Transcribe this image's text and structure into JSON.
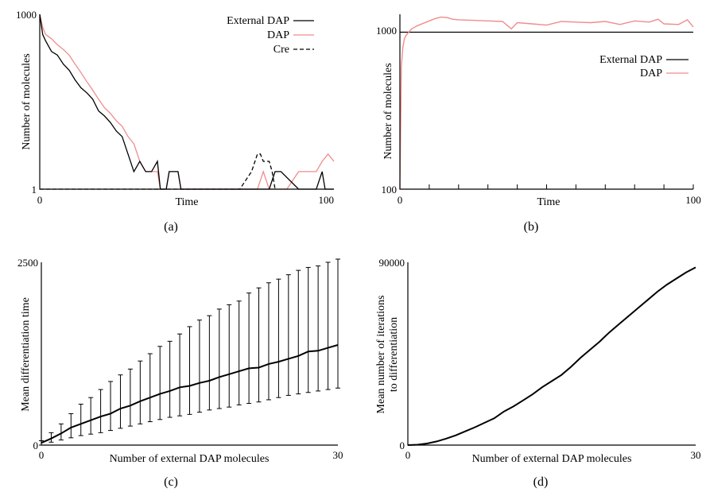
{
  "colors": {
    "external_dap": "#000000",
    "dap": "#f08c8c",
    "cre": "#000000",
    "axis": "#000000"
  },
  "chart_data": [
    {
      "panel": "a",
      "type": "line",
      "caption": "(a)",
      "xlabel": "Time",
      "ylabel": "Number of molecules",
      "yscale": "log",
      "xlim": [
        0,
        100
      ],
      "ylim": [
        1,
        1000
      ],
      "x_ticks": [
        "0",
        "100"
      ],
      "y_ticks": [
        "1",
        "1000"
      ],
      "legend_position": "top-right",
      "series": [
        {
          "name": "External DAP",
          "key": "ext",
          "color": "#000000",
          "style": "solid",
          "x": [
            0,
            1,
            2,
            4,
            6,
            8,
            10,
            12,
            14,
            16,
            18,
            20,
            22,
            24,
            26,
            28,
            30,
            32,
            34,
            36,
            38,
            40,
            41,
            42,
            43,
            44,
            47,
            48,
            61,
            72,
            74,
            76,
            78,
            80,
            82,
            88,
            90,
            92,
            94,
            96,
            97,
            98,
            100
          ],
          "y": [
            1000,
            450,
            350,
            230,
            200,
            140,
            110,
            75,
            55,
            45,
            35,
            22,
            18,
            14,
            10,
            8,
            4,
            2,
            3,
            2,
            2,
            3,
            1,
            1,
            1,
            2,
            2,
            1,
            1,
            1,
            1,
            1,
            1,
            2,
            2,
            1,
            1,
            1,
            1,
            2,
            1,
            1,
            1
          ]
        },
        {
          "name": "DAP",
          "key": "dap",
          "color": "#f08c8c",
          "style": "solid",
          "x": [
            0,
            1,
            2,
            4,
            6,
            8,
            10,
            12,
            14,
            16,
            18,
            20,
            22,
            24,
            26,
            28,
            30,
            32,
            34,
            36,
            38,
            40,
            41,
            42,
            43,
            44,
            47,
            48,
            61,
            72,
            74,
            76,
            78,
            80,
            82,
            84,
            88,
            90,
            92,
            94,
            96,
            98,
            100
          ],
          "y": [
            1000,
            600,
            450,
            380,
            300,
            250,
            200,
            140,
            100,
            70,
            50,
            35,
            25,
            20,
            15,
            12,
            8,
            6,
            3,
            2,
            2,
            2,
            1,
            1,
            1,
            2,
            2,
            1,
            1,
            1,
            1,
            2,
            1,
            1,
            1,
            1,
            2,
            2,
            2,
            2,
            3,
            4,
            3
          ]
        },
        {
          "name": "Cre",
          "key": "cre",
          "color": "#000000",
          "style": "dashed",
          "x": [
            0,
            68,
            72,
            74,
            75,
            76,
            78,
            79,
            80
          ],
          "y": [
            1,
            1,
            2,
            4,
            4,
            3,
            3,
            2,
            1
          ]
        }
      ]
    },
    {
      "panel": "b",
      "type": "line",
      "caption": "(b)",
      "xlabel": "Time",
      "ylabel": "Number of molecules",
      "yscale": "log",
      "xlim": [
        0,
        100
      ],
      "ylim": [
        100,
        1300
      ],
      "x_ticks": [
        "0",
        "100"
      ],
      "y_ticks": [
        "100",
        "1000"
      ],
      "legend_position": "center-right",
      "series": [
        {
          "name": "External DAP",
          "key": "ext",
          "color": "#000000",
          "style": "solid",
          "x": [
            0,
            100
          ],
          "y": [
            1000,
            1000
          ]
        },
        {
          "name": "DAP",
          "key": "dap",
          "color": "#f08c8c",
          "style": "solid",
          "x": [
            0,
            0.5,
            1,
            1.5,
            2,
            3,
            4,
            6,
            8,
            10,
            12,
            14,
            16,
            18,
            20,
            25,
            30,
            35,
            38,
            40,
            45,
            50,
            55,
            60,
            65,
            70,
            75,
            80,
            85,
            88,
            90,
            95,
            98,
            100
          ],
          "y": [
            100,
            600,
            800,
            900,
            950,
            1000,
            1050,
            1100,
            1140,
            1180,
            1220,
            1250,
            1240,
            1210,
            1200,
            1190,
            1180,
            1170,
            1050,
            1150,
            1130,
            1110,
            1170,
            1160,
            1150,
            1170,
            1120,
            1180,
            1160,
            1210,
            1130,
            1120,
            1200,
            1080
          ]
        }
      ]
    },
    {
      "panel": "c",
      "type": "line",
      "caption": "(c)",
      "xlabel": "Number of external DAP molecules",
      "ylabel": "Mean differentiation time",
      "xlim": [
        0,
        30
      ],
      "ylim": [
        0,
        2500
      ],
      "x_ticks": [
        "0",
        "30"
      ],
      "y_ticks": [
        "0",
        "2500"
      ],
      "x": [
        0,
        1,
        2,
        3,
        4,
        5,
        6,
        7,
        8,
        9,
        10,
        11,
        12,
        13,
        14,
        15,
        16,
        17,
        18,
        19,
        20,
        21,
        22,
        23,
        24,
        25,
        26,
        27,
        28,
        29,
        30
      ],
      "mean": [
        30,
        90,
        160,
        240,
        290,
        340,
        390,
        430,
        500,
        540,
        600,
        650,
        700,
        740,
        790,
        810,
        850,
        880,
        930,
        970,
        1010,
        1050,
        1060,
        1110,
        1140,
        1180,
        1220,
        1280,
        1290,
        1330,
        1370
      ],
      "upper": [
        60,
        170,
        290,
        430,
        560,
        650,
        760,
        870,
        960,
        1040,
        1150,
        1250,
        1350,
        1420,
        1520,
        1620,
        1710,
        1770,
        1860,
        1920,
        1970,
        2080,
        2150,
        2220,
        2270,
        2330,
        2390,
        2430,
        2450,
        2500,
        2580
      ],
      "lower": [
        0,
        40,
        70,
        100,
        130,
        150,
        170,
        200,
        230,
        260,
        290,
        320,
        350,
        380,
        400,
        420,
        450,
        480,
        500,
        520,
        550,
        570,
        590,
        620,
        650,
        680,
        700,
        720,
        740,
        760,
        780
      ]
    },
    {
      "panel": "d",
      "type": "line",
      "caption": "(d)",
      "xlabel": "Number of external DAP molecules",
      "ylabel_lines": [
        "Mean number of iterations",
        "to differentiation"
      ],
      "xlim": [
        0,
        30
      ],
      "ylim": [
        0,
        90000
      ],
      "x_ticks": [
        "0",
        "30"
      ],
      "y_ticks": [
        "0",
        "90000"
      ],
      "x": [
        0,
        1,
        2,
        3,
        4,
        5,
        6,
        7,
        8,
        9,
        10,
        11,
        12,
        13,
        14,
        15,
        16,
        17,
        18,
        19,
        20,
        21,
        22,
        23,
        24,
        25,
        26,
        27,
        28,
        29,
        30
      ],
      "y": [
        0,
        200,
        800,
        1800,
        3200,
        4800,
        6800,
        8800,
        11000,
        13200,
        16500,
        19000,
        22000,
        25000,
        28500,
        31500,
        34500,
        38500,
        43000,
        47000,
        51000,
        55500,
        59500,
        63500,
        67500,
        71500,
        75500,
        79000,
        82000,
        85000,
        87500
      ]
    }
  ]
}
